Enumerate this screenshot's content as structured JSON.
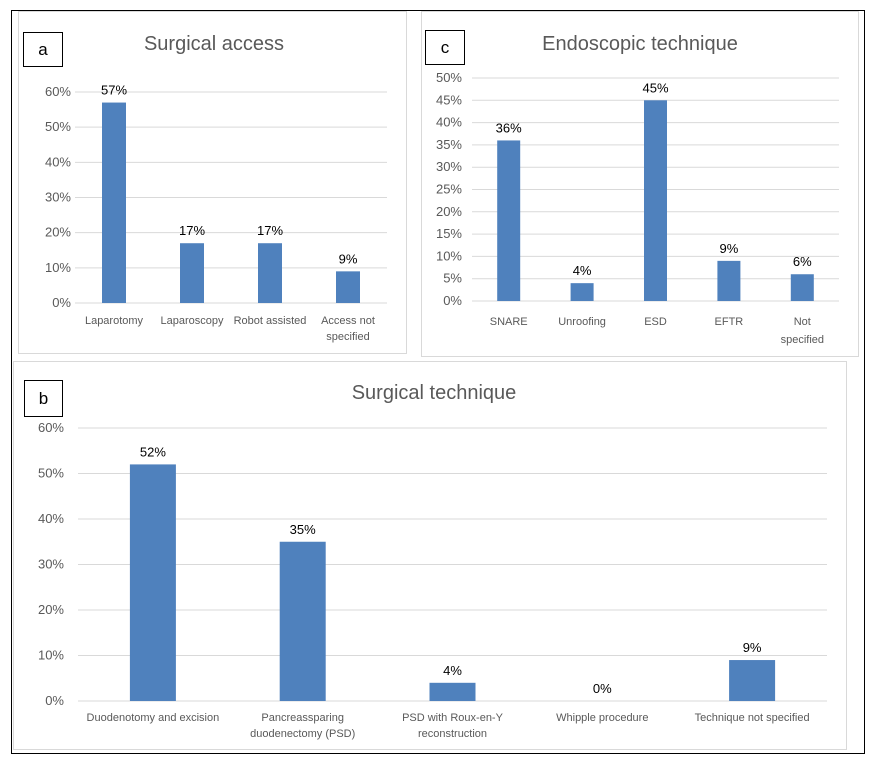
{
  "chart_data": [
    {
      "id": "a",
      "panel_label": "a",
      "type": "bar",
      "title": "Surgical access",
      "xlabel": "",
      "ylabel": "",
      "categories": [
        [
          "Laparotomy"
        ],
        [
          "Laparoscopy"
        ],
        [
          "Robot assisted"
        ],
        [
          "Access not",
          "specified"
        ]
      ],
      "values": [
        57,
        17,
        17,
        9
      ],
      "data_labels": [
        "57%",
        "17%",
        "17%",
        "9%"
      ],
      "yticks": [
        "0%",
        "10%",
        "20%",
        "30%",
        "40%",
        "50%",
        "60%"
      ],
      "ylim": [
        0,
        60
      ],
      "ytick_step": 10,
      "grid": true,
      "legend": "none",
      "bar_color": "#4f81bd"
    },
    {
      "id": "c",
      "panel_label": "c",
      "type": "bar",
      "title": "Endoscopic technique",
      "xlabel": "",
      "ylabel": "",
      "categories": [
        [
          "SNARE"
        ],
        [
          "Unroofing"
        ],
        [
          "ESD"
        ],
        [
          "EFTR"
        ],
        [
          "Not",
          "specified"
        ]
      ],
      "values": [
        36,
        4,
        45,
        9,
        6
      ],
      "data_labels": [
        "36%",
        "4%",
        "45%",
        "9%",
        "6%"
      ],
      "yticks": [
        "0%",
        "5%",
        "10%",
        "15%",
        "20%",
        "25%",
        "30%",
        "35%",
        "40%",
        "45%",
        "50%"
      ],
      "ylim": [
        0,
        50
      ],
      "ytick_step": 5,
      "grid": true,
      "legend": "none",
      "bar_color": "#4f81bd"
    },
    {
      "id": "b",
      "panel_label": "b",
      "type": "bar",
      "title": "Surgical technique",
      "xlabel": "",
      "ylabel": "",
      "categories": [
        [
          "Duodenotomy and excision"
        ],
        [
          "Pancreassparing",
          "duodenectomy (PSD)"
        ],
        [
          "PSD with Roux-en-Y",
          "reconstruction"
        ],
        [
          "Whipple procedure"
        ],
        [
          "Technique not specified"
        ]
      ],
      "values": [
        52,
        35,
        4,
        0,
        9
      ],
      "data_labels": [
        "52%",
        "35%",
        "4%",
        "0%",
        "9%"
      ],
      "yticks": [
        "0%",
        "10%",
        "20%",
        "30%",
        "40%",
        "50%",
        "60%"
      ],
      "ylim": [
        0,
        60
      ],
      "ytick_step": 10,
      "grid": true,
      "legend": "none",
      "bar_color": "#4f81bd"
    }
  ]
}
